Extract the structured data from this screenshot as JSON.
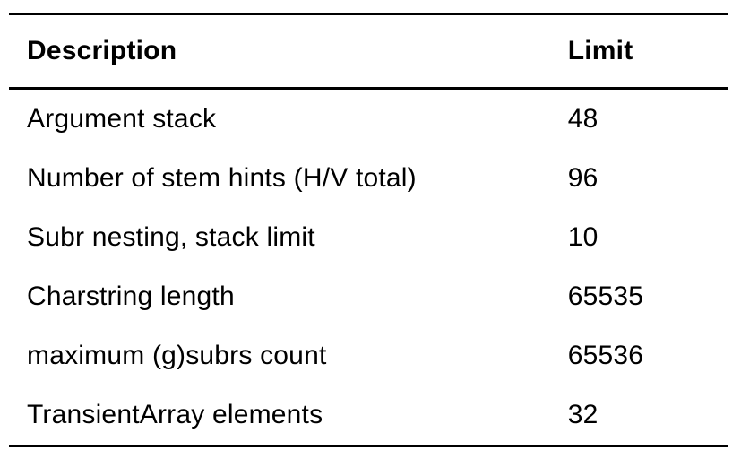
{
  "table": {
    "columns": [
      {
        "label": "Description"
      },
      {
        "label": "Limit"
      }
    ],
    "rows": [
      {
        "description": "Argument stack",
        "limit": "48"
      },
      {
        "description": "Number of stem hints (H/V total)",
        "limit": "96"
      },
      {
        "description": "Subr nesting, stack limit",
        "limit": "10"
      },
      {
        "description": "Charstring length",
        "limit": "65535"
      },
      {
        "description": "maximum (g)subrs count",
        "limit": "65536"
      },
      {
        "description": "TransientArray elements",
        "limit": "32"
      }
    ],
    "colors": {
      "text": "#000000",
      "rule": "#000000",
      "background": "#ffffff"
    }
  }
}
